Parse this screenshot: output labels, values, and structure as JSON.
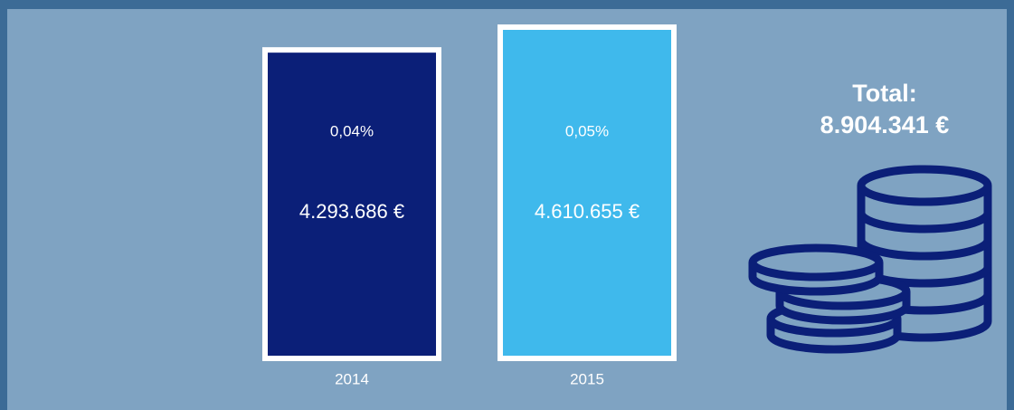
{
  "chart_data": {
    "type": "bar",
    "categories": [
      "2014",
      "2015"
    ],
    "values": [
      4293686,
      4610655
    ],
    "value_labels": [
      "4.293.686 €",
      "4.610.655 €"
    ],
    "percent_labels": [
      "0,04%",
      "0,05%"
    ],
    "colors": [
      "#0b1f78",
      "#3fb9ec"
    ],
    "total_title": "Total:",
    "total_label": "8.904.341 €"
  }
}
